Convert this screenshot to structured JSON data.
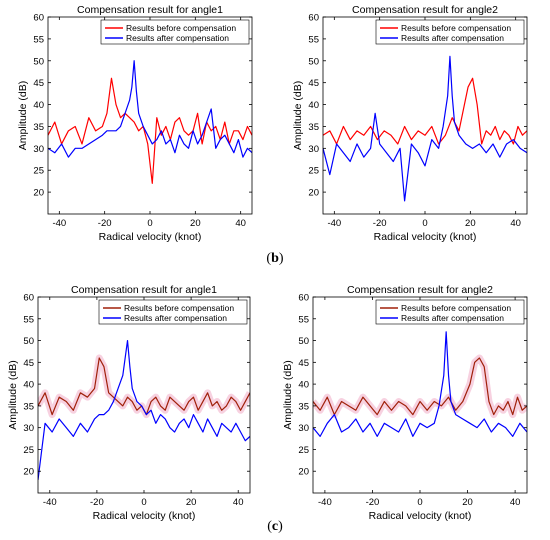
{
  "panel_labels": [
    {
      "open": "(",
      "letter": "b",
      "close": ")"
    },
    {
      "open": "(",
      "letter": "c",
      "close": ")"
    }
  ],
  "chart_data": [
    {
      "type": "line",
      "title": "Compensation result for angle1",
      "xlabel": "Radical velocity (knot)",
      "ylabel": "Amplitude (dB)",
      "xlim": [
        -45,
        45
      ],
      "ylim": [
        15,
        60
      ],
      "xticks": [
        -40,
        -20,
        0,
        20,
        40
      ],
      "yticks": [
        20,
        25,
        30,
        35,
        40,
        45,
        50,
        55,
        60
      ],
      "grid": false,
      "legend": "top-right",
      "series": [
        {
          "name": "Results before compensation",
          "color": "#ff0000",
          "shading": "",
          "x": [
            -45,
            -42,
            -39,
            -36,
            -33,
            -30,
            -27,
            -24,
            -21,
            -19,
            -17,
            -15,
            -13,
            -11,
            -9,
            -7,
            -5,
            -3,
            -1,
            1,
            3,
            5,
            7,
            9,
            11,
            13,
            15,
            17,
            19,
            21,
            23,
            25,
            27,
            29,
            31,
            33,
            35,
            37,
            39,
            41,
            43,
            45
          ],
          "y": [
            33,
            36,
            31,
            34,
            35,
            31,
            37,
            34,
            35,
            38,
            46,
            40,
            37,
            38,
            37,
            36,
            34,
            35,
            31,
            22,
            37,
            33,
            35,
            32,
            36,
            37,
            34,
            33,
            34,
            38,
            31,
            36,
            34,
            35,
            32,
            36,
            31,
            34,
            34,
            32,
            35,
            33
          ]
        },
        {
          "name": "Results after compensation",
          "color": "#0000ff",
          "shading": "",
          "x": [
            -45,
            -42,
            -39,
            -36,
            -33,
            -30,
            -27,
            -24,
            -21,
            -19,
            -17,
            -15,
            -13,
            -11,
            -9,
            -8,
            -7,
            -6,
            -5,
            -3,
            -1,
            1,
            3,
            5,
            7,
            9,
            11,
            13,
            15,
            17,
            19,
            21,
            23,
            25,
            27,
            29,
            31,
            33,
            35,
            37,
            39,
            41,
            43,
            45
          ],
          "y": [
            30,
            29,
            31,
            28,
            30,
            30,
            31,
            32,
            33,
            34,
            34,
            34,
            35,
            38,
            41,
            44,
            50,
            43,
            38,
            35,
            33,
            31,
            32,
            34,
            31,
            32,
            29,
            33,
            31,
            30,
            34,
            31,
            33,
            36,
            39,
            30,
            32,
            33,
            31,
            29,
            32,
            28,
            30,
            29
          ]
        }
      ]
    },
    {
      "type": "line",
      "title": "Compensation result for angle2",
      "xlabel": "Radical velocity (knot)",
      "ylabel": "Amplitude (dB)",
      "xlim": [
        -45,
        45
      ],
      "ylim": [
        15,
        60
      ],
      "xticks": [
        -40,
        -20,
        0,
        20,
        40
      ],
      "yticks": [
        20,
        25,
        30,
        35,
        40,
        45,
        50,
        55,
        60
      ],
      "grid": false,
      "legend": "top-right",
      "series": [
        {
          "name": "Results before compensation",
          "color": "#ff0000",
          "shading": "",
          "x": [
            -45,
            -42,
            -39,
            -36,
            -33,
            -30,
            -27,
            -24,
            -21,
            -18,
            -15,
            -12,
            -9,
            -6,
            -3,
            0,
            3,
            6,
            9,
            12,
            15,
            17,
            19,
            21,
            23,
            25,
            27,
            29,
            31,
            33,
            35,
            37,
            39,
            41,
            43,
            45
          ],
          "y": [
            33,
            34,
            31,
            35,
            32,
            34,
            33,
            35,
            32,
            34,
            33,
            31,
            35,
            32,
            34,
            33,
            35,
            31,
            33,
            37,
            34,
            39,
            44,
            46,
            40,
            31,
            34,
            33,
            35,
            32,
            34,
            33,
            31,
            35,
            33,
            34
          ]
        },
        {
          "name": "Results after compensation",
          "color": "#0000ff",
          "shading": "",
          "x": [
            -45,
            -42,
            -39,
            -36,
            -33,
            -30,
            -27,
            -24,
            -22,
            -20,
            -17,
            -14,
            -11,
            -9,
            -6,
            -3,
            0,
            3,
            6,
            8,
            10,
            11,
            12,
            13,
            15,
            18,
            21,
            24,
            27,
            30,
            33,
            36,
            39,
            42,
            45
          ],
          "y": [
            30,
            24,
            31,
            29,
            27,
            31,
            28,
            30,
            38,
            31,
            29,
            27,
            30,
            18,
            31,
            29,
            26,
            32,
            30,
            35,
            42,
            51,
            42,
            36,
            33,
            31,
            30,
            31,
            29,
            31,
            28,
            31,
            32,
            30,
            29
          ]
        }
      ]
    },
    {
      "type": "line",
      "title": "Compensation result for angle1",
      "xlabel": "Radical velocity (knot)",
      "ylabel": "Amplitude (dB)",
      "xlim": [
        -45,
        45
      ],
      "ylim": [
        15,
        60
      ],
      "xticks": [
        -40,
        -20,
        0,
        20,
        40
      ],
      "yticks": [
        20,
        25,
        30,
        35,
        40,
        45,
        50,
        55,
        60
      ],
      "grid": false,
      "legend": "top-right",
      "series": [
        {
          "name": "Results before compensation",
          "color": "#a0200a",
          "shading": "#f5c6d8",
          "x": [
            -45,
            -42,
            -39,
            -36,
            -33,
            -30,
            -27,
            -24,
            -21,
            -19,
            -17,
            -15,
            -13,
            -11,
            -9,
            -7,
            -5,
            -3,
            -1,
            1,
            3,
            5,
            7,
            9,
            11,
            13,
            15,
            17,
            19,
            21,
            23,
            25,
            27,
            29,
            31,
            33,
            35,
            37,
            39,
            41,
            43,
            45
          ],
          "y": [
            35,
            38,
            33,
            37,
            36,
            34,
            38,
            37,
            39,
            46,
            44,
            38,
            37,
            36,
            35,
            37,
            36,
            34,
            35,
            33,
            36,
            37,
            35,
            34,
            37,
            36,
            35,
            34,
            36,
            37,
            34,
            36,
            38,
            35,
            36,
            34,
            35,
            37,
            36,
            34,
            36,
            38
          ]
        },
        {
          "name": "Results after compensation",
          "color": "#0000ff",
          "shading": "",
          "x": [
            -45,
            -42,
            -39,
            -36,
            -33,
            -30,
            -27,
            -24,
            -21,
            -19,
            -17,
            -15,
            -13,
            -11,
            -9,
            -8,
            -7,
            -6,
            -5,
            -3,
            -1,
            1,
            3,
            5,
            7,
            9,
            11,
            13,
            15,
            17,
            19,
            21,
            23,
            25,
            27,
            29,
            31,
            33,
            35,
            37,
            39,
            41,
            43,
            45
          ],
          "y": [
            18,
            31,
            29,
            32,
            30,
            28,
            31,
            29,
            32,
            33,
            33,
            34,
            36,
            39,
            42,
            46,
            50,
            44,
            39,
            36,
            35,
            33,
            34,
            31,
            33,
            32,
            30,
            29,
            31,
            32,
            30,
            33,
            31,
            29,
            32,
            30,
            28,
            31,
            30,
            29,
            31,
            29,
            27,
            28
          ]
        }
      ]
    },
    {
      "type": "line",
      "title": "Compensation result for angle2",
      "xlabel": "Radical velocity (knot)",
      "ylabel": "Amplitude (dB)",
      "xlim": [
        -45,
        45
      ],
      "ylim": [
        15,
        60
      ],
      "xticks": [
        -40,
        -20,
        0,
        20,
        40
      ],
      "yticks": [
        20,
        25,
        30,
        35,
        40,
        45,
        50,
        55,
        60
      ],
      "grid": false,
      "legend": "top-right",
      "series": [
        {
          "name": "Results before compensation",
          "color": "#a0200a",
          "shading": "#f5c6d8",
          "x": [
            -45,
            -42,
            -39,
            -36,
            -33,
            -30,
            -27,
            -24,
            -21,
            -18,
            -15,
            -12,
            -9,
            -6,
            -3,
            0,
            3,
            6,
            9,
            12,
            15,
            18,
            21,
            23,
            25,
            27,
            29,
            31,
            33,
            35,
            37,
            39,
            41,
            43,
            45
          ],
          "y": [
            36,
            34,
            37,
            33,
            36,
            35,
            34,
            37,
            35,
            33,
            36,
            34,
            36,
            35,
            33,
            36,
            34,
            36,
            35,
            37,
            34,
            36,
            40,
            45,
            46,
            44,
            36,
            33,
            35,
            34,
            36,
            33,
            37,
            34,
            35
          ]
        },
        {
          "name": "Results after compensation",
          "color": "#0000ff",
          "shading": "",
          "x": [
            -45,
            -42,
            -39,
            -36,
            -33,
            -30,
            -27,
            -24,
            -21,
            -18,
            -15,
            -12,
            -9,
            -6,
            -3,
            0,
            3,
            6,
            8,
            10,
            11,
            12,
            13,
            15,
            18,
            21,
            24,
            27,
            30,
            33,
            36,
            39,
            42,
            45
          ],
          "y": [
            30,
            28,
            31,
            33,
            29,
            30,
            32,
            29,
            31,
            28,
            31,
            30,
            29,
            32,
            28,
            31,
            30,
            31,
            35,
            42,
            52,
            42,
            36,
            33,
            32,
            31,
            30,
            32,
            29,
            31,
            30,
            28,
            31,
            29
          ]
        }
      ]
    }
  ]
}
